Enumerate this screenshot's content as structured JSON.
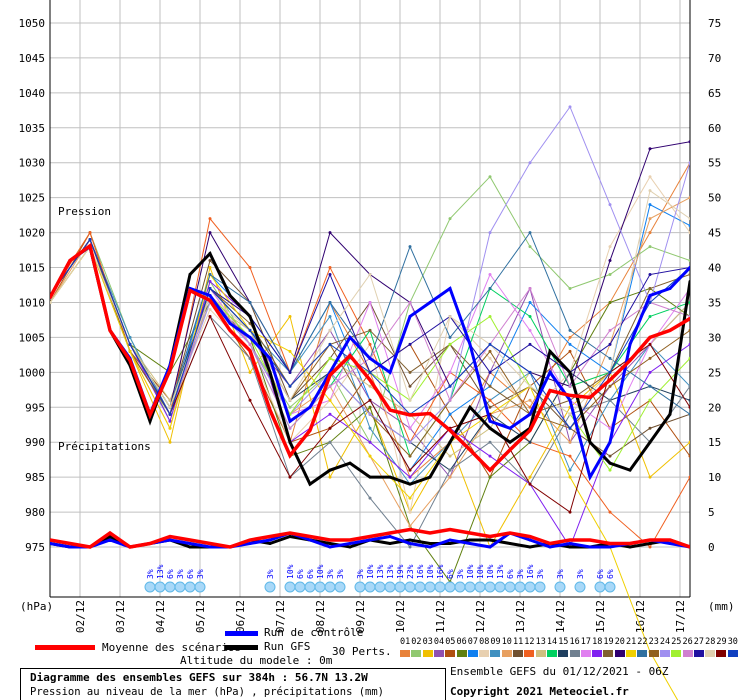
{
  "chart_data": {
    "type": "line",
    "title": "Diagramme des ensembles GEFS sur 384h : 56.7N 13.2W",
    "subtitle": "Pression au niveau de la mer (hPa) , précipitations (mm)",
    "run_info": "Ensemble GEFS du 01/12/2021 - 06Z",
    "copyright": "Copyright 2021 Meteociel.fr",
    "altitude": "Altitude du modele : 0m",
    "pressure_label": "Pression",
    "precip_label": "Précipitations",
    "left_unit": "(hPa)",
    "right_unit": "(mm)",
    "y_left": {
      "range": [
        975,
        1050
      ],
      "ticks": [
        "1050",
        "1045",
        "1040",
        "1035",
        "1030",
        "1025",
        "1020",
        "1015",
        "1010",
        "1005",
        "1000",
        "995",
        "990",
        "985",
        "980",
        "975"
      ]
    },
    "y_right": {
      "range": [
        0,
        75
      ],
      "ticks": [
        "75",
        "70",
        "65",
        "60",
        "55",
        "50",
        "45",
        "40",
        "35",
        "30",
        "25",
        "20",
        "15",
        "10",
        "5",
        "0"
      ]
    },
    "x_dates": [
      "02/12",
      "03/12",
      "04/12",
      "05/12",
      "06/12",
      "07/12",
      "08/12",
      "09/12",
      "10/12",
      "11/12",
      "12/12",
      "13/12",
      "14/12",
      "15/12",
      "16/12",
      "17/12"
    ],
    "x_range_hours": [
      0,
      384
    ],
    "grid": true,
    "legend": {
      "mean": "Moyenne des scénarios",
      "control": "Run de contrôle",
      "gfs": "Run GFS",
      "perts": "30 Perts.",
      "mean_color": "#ff0000",
      "control_color": "#0000ff",
      "gfs_color": "#000000"
    },
    "hours_12h": [
      0,
      12,
      24,
      36,
      48,
      60,
      72,
      84,
      96,
      108,
      120,
      132,
      144,
      156,
      168,
      180,
      192,
      204,
      216,
      228,
      240,
      252,
      264,
      276,
      288,
      300,
      312,
      324,
      336,
      348,
      360,
      372,
      384
    ],
    "hours_24h": [
      0,
      24,
      48,
      72,
      96,
      120,
      144,
      168,
      192,
      216,
      240,
      264,
      288,
      312,
      336,
      360,
      384
    ],
    "series": [
      {
        "name": "Moyenne des scénarios",
        "role": "mean",
        "pressure": [
          1010.7,
          1016.0,
          1018.1,
          1006.0,
          1001.7,
          993.9,
          1000.3,
          1011.7,
          1010.3,
          1006.0,
          1003.1,
          994.6,
          988.1,
          991.7,
          999.6,
          1002.4,
          998.9,
          994.6,
          993.9,
          994.1,
          991.7,
          988.9,
          986.0,
          988.9,
          991.7,
          997.4,
          996.7,
          996.4,
          998.9,
          1001.7,
          1005.0,
          1006.0,
          1007.7
        ],
        "precip": [
          1,
          0.5,
          0,
          2,
          0,
          0.5,
          1.5,
          1,
          0.5,
          0,
          1,
          1.5,
          2,
          1.5,
          1,
          1,
          1.5,
          2,
          2.5,
          2,
          2.5,
          2,
          1.5,
          2,
          1.5,
          0.5,
          1,
          1,
          0.5,
          0.5,
          1,
          1,
          0
        ]
      },
      {
        "name": "Run de contrôle",
        "role": "control",
        "pressure": [
          1010.7,
          1016.0,
          1018.0,
          1006.0,
          1002.0,
          994.0,
          1001.0,
          1012.0,
          1011.0,
          1007.0,
          1005.0,
          1002.0,
          993.0,
          995.0,
          1000.0,
          1005.0,
          1002.0,
          1000.0,
          1008.0,
          1010.0,
          1012.0,
          1004.0,
          993.0,
          992.0,
          994.0,
          1000.0,
          996.0,
          985.0,
          990.0,
          1004.0,
          1011.0,
          1012.0,
          1015.0
        ],
        "precip": [
          0.5,
          0,
          0,
          1,
          0,
          0.5,
          1,
          0.5,
          0,
          0,
          0.5,
          1,
          2,
          1,
          0,
          0.5,
          1,
          1.5,
          0.5,
          0,
          1,
          0.5,
          0,
          2,
          1,
          0,
          0.5,
          0,
          0,
          0.5,
          1,
          0.5,
          0
        ]
      },
      {
        "name": "Run GFS",
        "role": "gfs",
        "pressure": [
          1010.7,
          1016.0,
          1018.0,
          1006.0,
          1001.0,
          993.0,
          1001.0,
          1014.0,
          1017.0,
          1011.0,
          1008.0,
          1000.0,
          990.0,
          984.0,
          986.0,
          987.0,
          985.0,
          985.0,
          984.0,
          985.0,
          990.0,
          995.0,
          992.0,
          990.0,
          992.0,
          1003.0,
          1000.0,
          990.0,
          987.0,
          986.0,
          990.0,
          994.0,
          1013.0
        ],
        "precip": [
          0.5,
          0,
          0,
          1.5,
          0,
          0.5,
          1,
          0,
          0,
          0,
          1,
          0.5,
          1.5,
          1,
          0.5,
          0,
          1,
          0.5,
          1,
          0.5,
          0.5,
          1,
          1,
          0.5,
          0,
          0.5,
          0,
          0,
          0.5,
          0,
          0.5,
          1,
          0
        ]
      }
    ],
    "perturbations": [
      {
        "name": "01",
        "color": "#e8823a",
        "pressure": [
          1011,
          1019,
          1004,
          994,
          1012,
          1008,
          990,
          1010,
          1000,
          985,
          990,
          1000,
          995,
          1005,
          1010,
          1020,
          1030
        ]
      },
      {
        "name": "02",
        "color": "#90c870",
        "pressure": [
          1011,
          1020,
          1005,
          993,
          1013,
          1004,
          995,
          1000,
          990,
          1010,
          1022,
          1028,
          1018,
          1012,
          1014,
          1018,
          1016
        ]
      },
      {
        "name": "03",
        "color": "#f0c000",
        "pressure": [
          1010,
          1018,
          1003,
          990,
          1015,
          1000,
          1008,
          985,
          995,
          980,
          990,
          975,
          985,
          995,
          1000,
          985,
          990
        ]
      },
      {
        "name": "04",
        "color": "#9050b0",
        "pressure": [
          1011,
          1019,
          1004,
          995,
          1011,
          1005,
          998,
          1006,
          996,
          992,
          985,
          1000,
          1012,
          990,
          998,
          1004,
          1010
        ]
      },
      {
        "name": "05",
        "color": "#b05010",
        "pressure": [
          1010,
          1020,
          1003,
          996,
          1010,
          1002,
          990,
          992,
          1000,
          1004,
          994,
          985,
          998,
          1003,
          992,
          996,
          988
        ]
      },
      {
        "name": "06",
        "color": "#608010",
        "pressure": [
          1011,
          1019,
          1004,
          1000,
          1010,
          1005,
          988,
          990,
          995,
          978,
          970,
          985,
          990,
          1000,
          1010,
          1012,
          1008
        ]
      },
      {
        "name": "07",
        "color": "#1080f0",
        "pressure": [
          1011,
          1019,
          1003,
          994,
          1014,
          1008,
          1000,
          1010,
          996,
          986,
          994,
          998,
          1010,
          1004,
          1000,
          1024,
          1021
        ]
      },
      {
        "name": "08",
        "color": "#e8d0b0",
        "pressure": [
          1010,
          1018,
          1004,
          995,
          1009,
          1003,
          990,
          996,
          1004,
          980,
          1008,
          1002,
          994,
          1000,
          1018,
          1028,
          1020
        ]
      },
      {
        "name": "09",
        "color": "#4090c0",
        "pressure": [
          1011,
          1019,
          1005,
          994,
          1012,
          1006,
          1000,
          1008,
          992,
          984,
          990,
          996,
          1000,
          986,
          996,
          1004,
          998
        ]
      },
      {
        "name": "10",
        "color": "#e8a060",
        "pressure": [
          1010,
          1019,
          1003,
          992,
          1012,
          1004,
          994,
          998,
          988,
          978,
          985,
          994,
          996,
          990,
          1004,
          1022,
          1025
        ]
      },
      {
        "name": "11",
        "color": "#705030",
        "pressure": [
          1011,
          1019,
          1004,
          995,
          1016,
          1010,
          996,
          1002,
          1010,
          998,
          1004,
          995,
          998,
          992,
          988,
          992,
          994
        ]
      },
      {
        "name": "12",
        "color": "#f06020",
        "pressure": [
          1011,
          1020,
          1003,
          994,
          1022,
          1015,
          1000,
          1015,
          1004,
          990,
          1000,
          996,
          990,
          988,
          980,
          975,
          985
        ]
      },
      {
        "name": "13",
        "color": "#d0c080",
        "pressure": [
          1010,
          1018,
          1004,
          996,
          1010,
          1006,
          994,
          1002,
          998,
          994,
          988,
          992,
          1000,
          998,
          1000,
          1004,
          1010
        ]
      },
      {
        "name": "14",
        "color": "#00d060",
        "pressure": [
          1011,
          1019,
          1004,
          994,
          1011,
          1004,
          992,
          998,
          1006,
          988,
          996,
          1012,
          1008,
          998,
          1000,
          1008,
          1010
        ]
      },
      {
        "name": "15",
        "color": "#204060",
        "pressure": [
          1011,
          1019,
          1004,
          995,
          1012,
          1006,
          996,
          1000,
          994,
          990,
          986,
          994,
          990,
          1000,
          996,
          998,
          996
        ]
      },
      {
        "name": "16",
        "color": "#708090",
        "pressure": [
          1010,
          1018,
          1003,
          994,
          1008,
          1002,
          985,
          990,
          982,
          975,
          986,
          990,
          984,
          994,
          996,
          990,
          998
        ]
      },
      {
        "name": "17",
        "color": "#e080f0",
        "pressure": [
          1011,
          1019,
          1004,
          994,
          1012,
          1004,
          994,
          996,
          1010,
          992,
          1000,
          1014,
          1006,
          996,
          992,
          1004,
          1012
        ]
      },
      {
        "name": "18",
        "color": "#8020f0",
        "pressure": [
          1011,
          1019,
          1004,
          993,
          1013,
          1008,
          990,
          994,
          990,
          985,
          992,
          988,
          984,
          975,
          990,
          1000,
          1004
        ]
      },
      {
        "name": "19",
        "color": "#806030",
        "pressure": [
          1011,
          1019,
          1003,
          994,
          1012,
          1007,
          998,
          1004,
          1006,
          1000,
          1004,
          998,
          994,
          996,
          1000,
          1012,
          1014
        ]
      },
      {
        "name": "20",
        "color": "#300070",
        "pressure": [
          1011,
          1019,
          1004,
          995,
          1020,
          1010,
          1000,
          1020,
          1014,
          1010,
          998,
          1004,
          1000,
          998,
          1016,
          1032,
          1033
        ]
      },
      {
        "name": "21",
        "color": "#f0d000",
        "pressure": [
          1010,
          1018,
          1003,
          992,
          1014,
          1006,
          1003,
          996,
          988,
          982,
          990,
          994,
          998,
          985,
          975,
          960,
          950
        ]
      },
      {
        "name": "22",
        "color": "#3070a0",
        "pressure": [
          1011,
          1019,
          1004,
          995,
          1014,
          1010,
          1000,
          1010,
          1002,
          1018,
          1005,
          1012,
          1020,
          1006,
          1002,
          998,
          994
        ]
      },
      {
        "name": "23",
        "color": "#906020",
        "pressure": [
          1011,
          1019,
          1004,
          994,
          1012,
          1006,
          996,
          1004,
          994,
          988,
          996,
          1003,
          994,
          992,
          998,
          1002,
          1006
        ]
      },
      {
        "name": "24",
        "color": "#a090f0",
        "pressure": [
          1011,
          1019,
          1004,
          994,
          1010,
          1004,
          994,
          1000,
          994,
          990,
          996,
          1020,
          1030,
          1038,
          1024,
          1010,
          1030
        ]
      },
      {
        "name": "25",
        "color": "#a0f030",
        "pressure": [
          1011,
          1019,
          1004,
          995,
          1011,
          1005,
          994,
          1002,
          1000,
          996,
          1004,
          1008,
          998,
          994,
          986,
          996,
          1002
        ]
      },
      {
        "name": "26",
        "color": "#d080d0",
        "pressure": [
          1011,
          1019,
          1004,
          994,
          1011,
          1004,
          992,
          998,
          1002,
          1010,
          996,
          1004,
          1012,
          998,
          1006,
          1010,
          1008
        ]
      },
      {
        "name": "27",
        "color": "#2010a0",
        "pressure": [
          1011,
          1019,
          1004,
          994,
          1012,
          1008,
          1000,
          1014,
          1000,
          1004,
          1008,
          1000,
          1004,
          1000,
          1004,
          1014,
          1015
        ]
      },
      {
        "name": "28",
        "color": "#e0d0b0",
        "pressure": [
          1010,
          1018,
          1004,
          995,
          1011,
          1006,
          996,
          1006,
          1014,
          996,
          1008,
          1004,
          998,
          994,
          1000,
          1026,
          1022
        ]
      },
      {
        "name": "29",
        "color": "#800000",
        "pressure": [
          1011,
          1019,
          1004,
          994,
          1008,
          996,
          985,
          992,
          996,
          986,
          992,
          994,
          984,
          980,
          1000,
          1004,
          995
        ]
      },
      {
        "name": "30",
        "color": "#1040c0",
        "pressure": [
          1011,
          1019,
          1004,
          994,
          1012,
          1006,
          998,
          1004,
          1000,
          994,
          998,
          1004,
          1000,
          992,
          1000,
          1010,
          1015
        ]
      }
    ],
    "snow_probability": [
      {
        "hour": 60,
        "label": "3%"
      },
      {
        "hour": 66,
        "label": "13%"
      },
      {
        "hour": 72,
        "label": "6%"
      },
      {
        "hour": 78,
        "label": "3%"
      },
      {
        "hour": 84,
        "label": "6%"
      },
      {
        "hour": 90,
        "label": "3%"
      },
      {
        "hour": 132,
        "label": "3%"
      },
      {
        "hour": 144,
        "label": "10%"
      },
      {
        "hour": 150,
        "label": "6%"
      },
      {
        "hour": 156,
        "label": "6%"
      },
      {
        "hour": 162,
        "label": "10%"
      },
      {
        "hour": 168,
        "label": "3%"
      },
      {
        "hour": 174,
        "label": "3%"
      },
      {
        "hour": 186,
        "label": "3%"
      },
      {
        "hour": 192,
        "label": "10%"
      },
      {
        "hour": 198,
        "label": "13%"
      },
      {
        "hour": 204,
        "label": "13%"
      },
      {
        "hour": 210,
        "label": "19%"
      },
      {
        "hour": 216,
        "label": "23%"
      },
      {
        "hour": 222,
        "label": "16%"
      },
      {
        "hour": 228,
        "label": "10%"
      },
      {
        "hour": 234,
        "label": "16%"
      },
      {
        "hour": 240,
        "label": "6%"
      },
      {
        "hour": 246,
        "label": "3%"
      },
      {
        "hour": 252,
        "label": "10%"
      },
      {
        "hour": 258,
        "label": "10%"
      },
      {
        "hour": 264,
        "label": "10%"
      },
      {
        "hour": 270,
        "label": "13%"
      },
      {
        "hour": 276,
        "label": "6%"
      },
      {
        "hour": 282,
        "label": "3%"
      },
      {
        "hour": 288,
        "label": "16%"
      },
      {
        "hour": 294,
        "label": "3%"
      },
      {
        "hour": 306,
        "label": "3%"
      },
      {
        "hour": 318,
        "label": "3%"
      },
      {
        "hour": 330,
        "label": "6%"
      },
      {
        "hour": 336,
        "label": "6%"
      }
    ],
    "snow_color": "#0000ff",
    "snow_icon": "snowflake-icon"
  }
}
